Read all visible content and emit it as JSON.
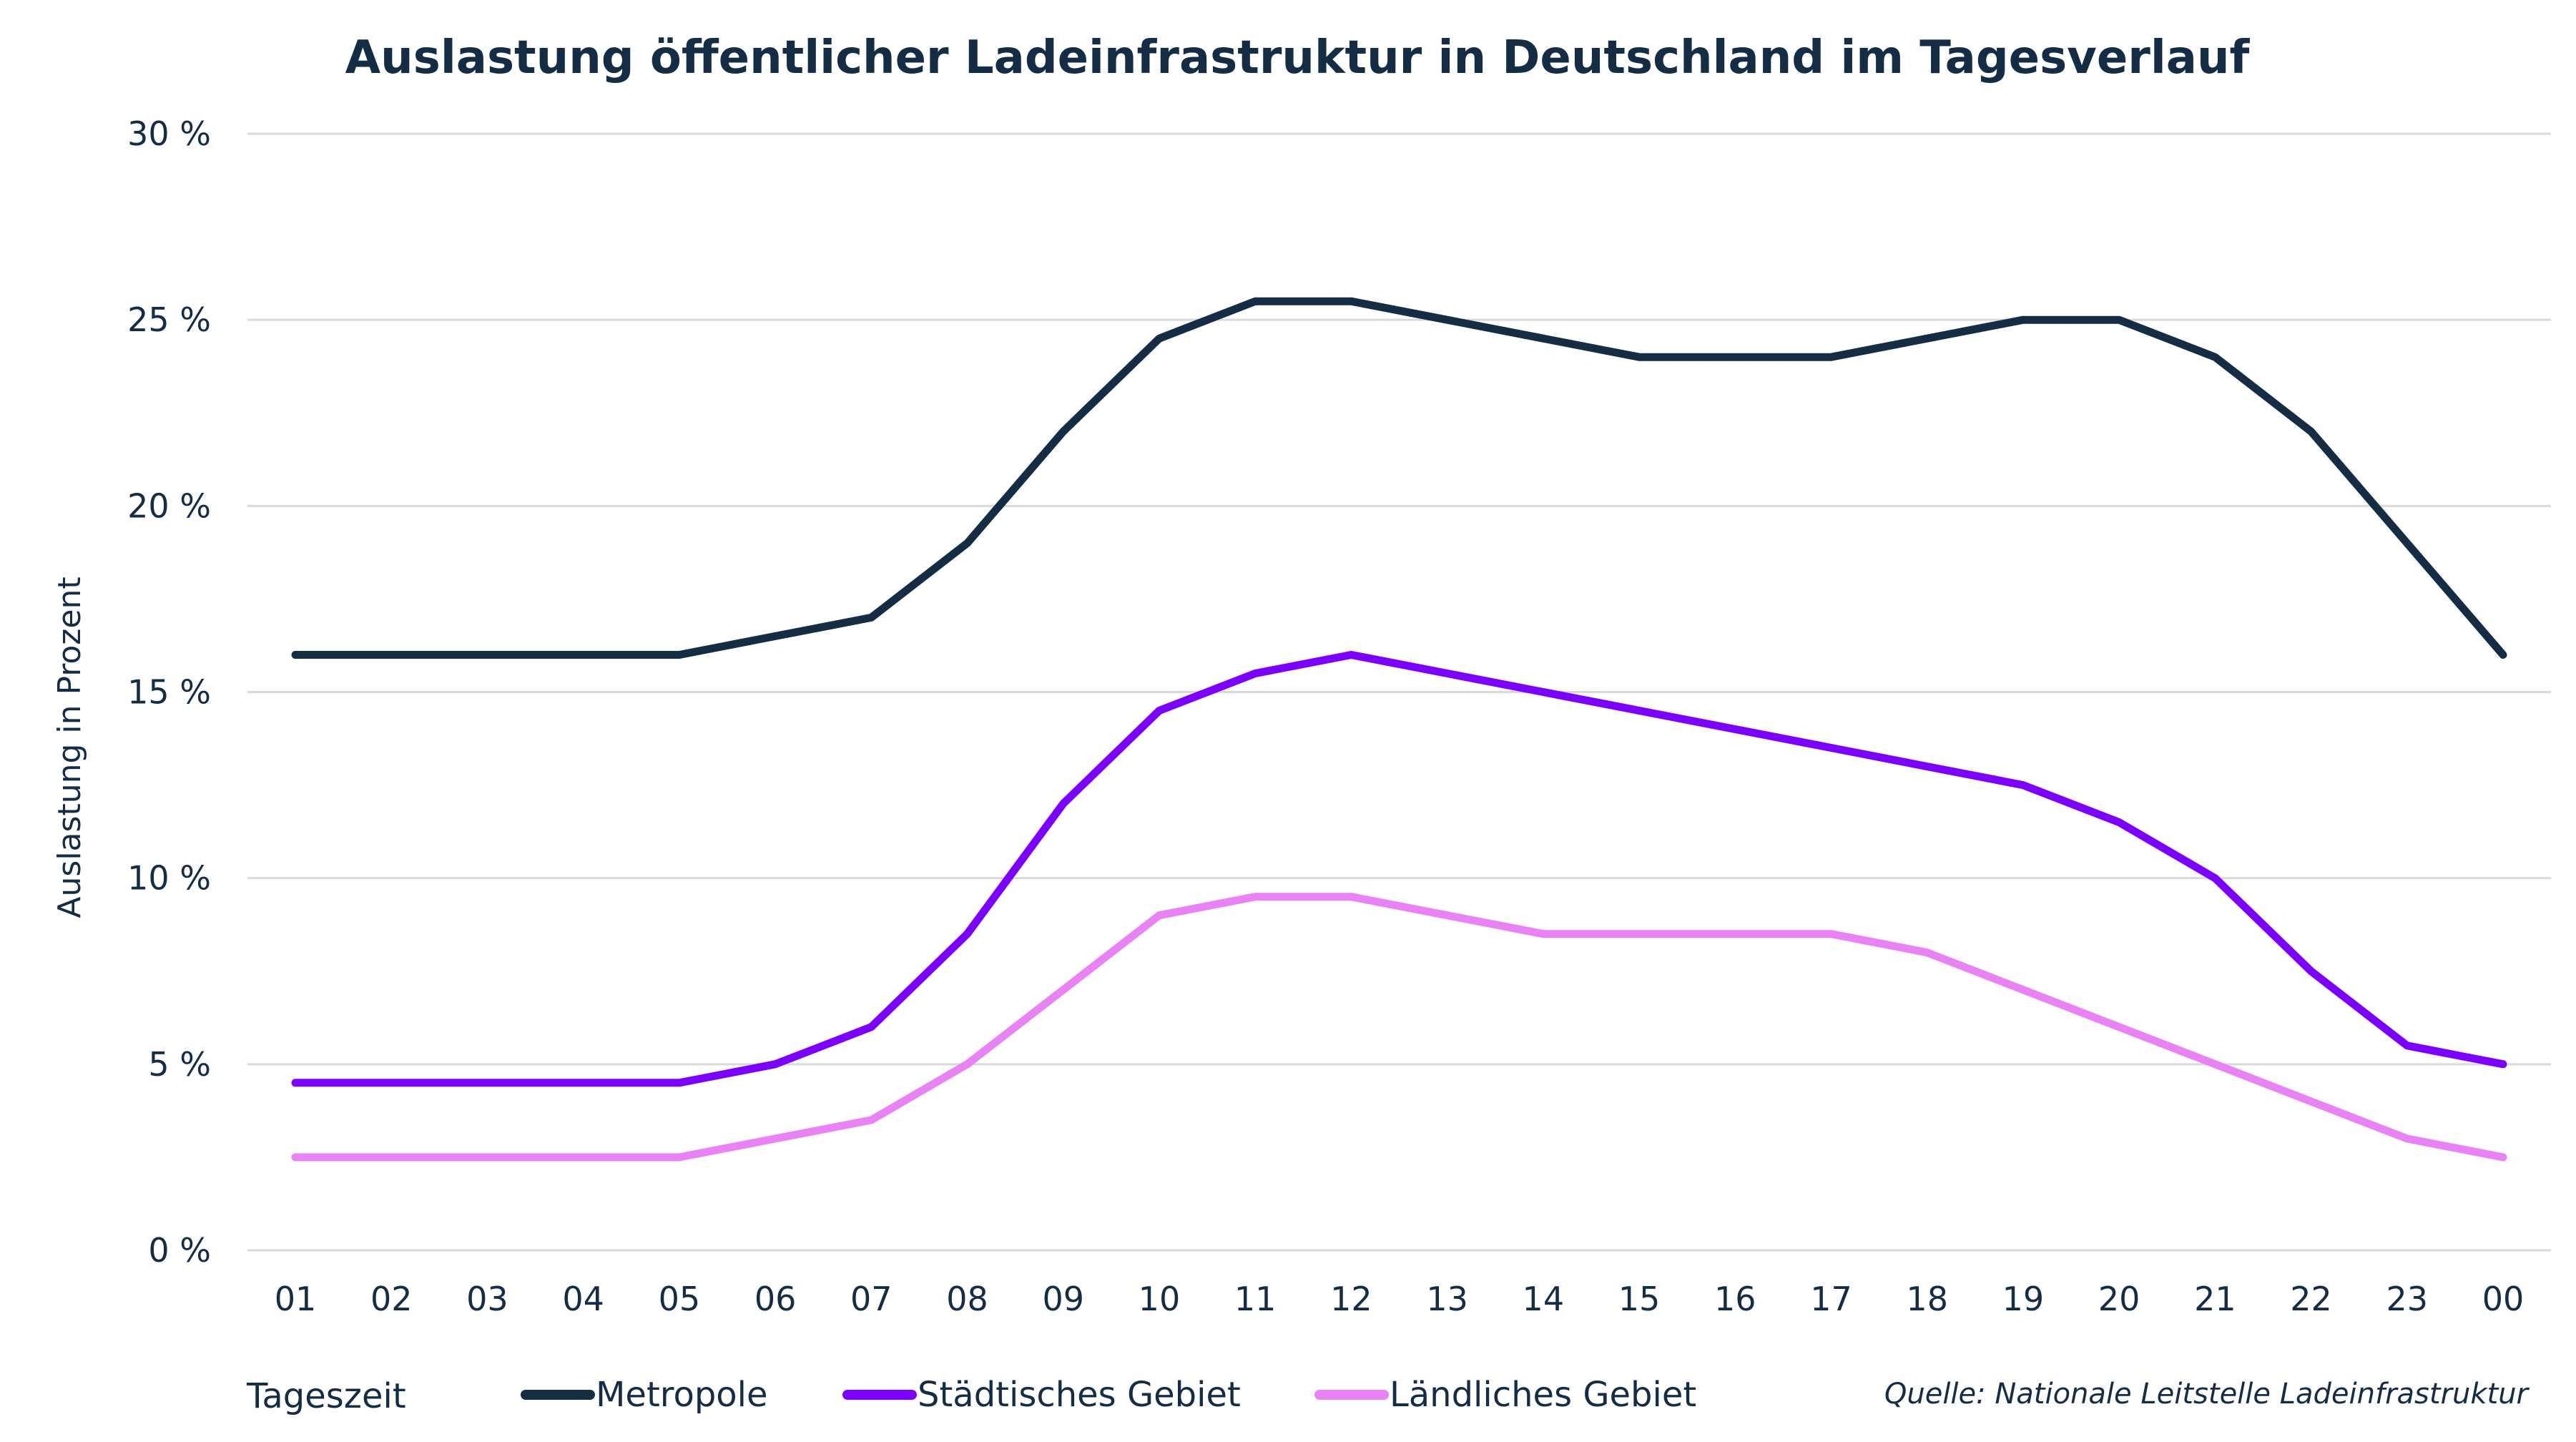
{
  "chart_data": {
    "type": "line",
    "title": "Auslastung öffentlicher Ladeinfrastruktur in Deutschland im Tagesverlauf",
    "xlabel": "Tageszeit",
    "ylabel": "Auslastung in Prozent",
    "ylim": [
      0,
      30
    ],
    "yticks": [
      0,
      5,
      10,
      15,
      20,
      25,
      30
    ],
    "ytick_labels": [
      "0 %",
      "5 %",
      "10 %",
      "15 %",
      "20 %",
      "25 %",
      "30 %"
    ],
    "grid": true,
    "legend_position": "bottom",
    "categories": [
      "01",
      "02",
      "03",
      "04",
      "05",
      "06",
      "07",
      "08",
      "09",
      "10",
      "11",
      "12",
      "13",
      "14",
      "15",
      "16",
      "17",
      "18",
      "19",
      "20",
      "21",
      "22",
      "23",
      "00"
    ],
    "series": [
      {
        "name": "Metropole",
        "color": "#152c45",
        "values": [
          16,
          16,
          16,
          16,
          16,
          16.5,
          17,
          19,
          22,
          24.5,
          25.5,
          25.5,
          25,
          24.5,
          24,
          24,
          24,
          24.5,
          25,
          25,
          24,
          22,
          19,
          16
        ]
      },
      {
        "name": "Städtisches Gebiet",
        "color": "#7b00ff",
        "values": [
          4.5,
          4.5,
          4.5,
          4.5,
          4.5,
          5,
          6,
          8.5,
          12,
          14.5,
          15.5,
          16,
          15.5,
          15,
          14.5,
          14,
          13.5,
          13,
          12.5,
          11.5,
          10,
          7.5,
          5.5,
          5
        ]
      },
      {
        "name": "Ländliches Gebiet",
        "color": "#e882f5",
        "values": [
          2.5,
          2.5,
          2.5,
          2.5,
          2.5,
          3,
          3.5,
          5,
          7,
          9,
          9.5,
          9.5,
          9,
          8.5,
          8.5,
          8.5,
          8.5,
          8,
          7,
          6,
          5,
          4,
          3,
          2.5
        ]
      }
    ],
    "source": "Quelle: Nationale Leitstelle Ladeinfrastruktur"
  }
}
